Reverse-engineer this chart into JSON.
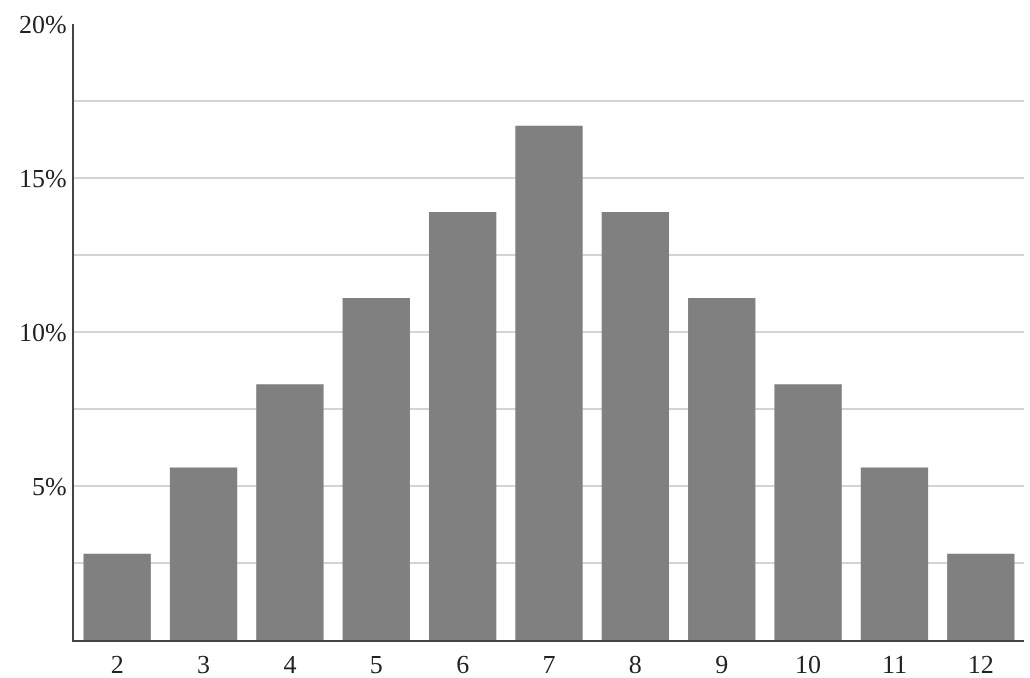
{
  "chart_data": {
    "type": "bar",
    "categories": [
      "2",
      "3",
      "4",
      "5",
      "6",
      "7",
      "8",
      "9",
      "10",
      "11",
      "12"
    ],
    "values": [
      2.8,
      5.6,
      8.3,
      11.1,
      13.9,
      16.7,
      13.9,
      11.1,
      8.3,
      5.6,
      2.8
    ],
    "color": "#808080",
    "ylim": [
      0,
      20
    ],
    "yticks": [
      {
        "value": 2.5,
        "label": null
      },
      {
        "value": 5,
        "label": "5%"
      },
      {
        "value": 7.5,
        "label": null
      },
      {
        "value": 10,
        "label": "10%"
      },
      {
        "value": 12.5,
        "label": null
      },
      {
        "value": 15,
        "label": "15%"
      },
      {
        "value": 17.5,
        "label": null
      },
      {
        "value": 20,
        "label": "20%"
      }
    ],
    "grid": "y",
    "legend": false
  }
}
